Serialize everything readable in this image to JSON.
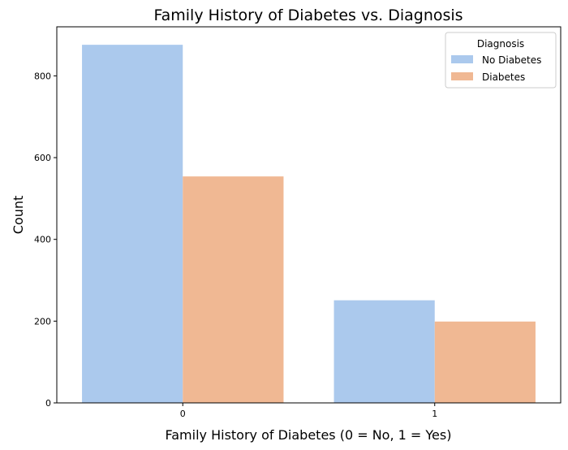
{
  "chart_data": {
    "type": "bar",
    "title": "Family History of Diabetes vs. Diagnosis",
    "xlabel": "Family History of Diabetes (0 = No, 1 = Yes)",
    "ylabel": "Count",
    "categories": [
      "0",
      "1"
    ],
    "series": [
      {
        "name": "No Diabetes",
        "values": [
          876,
          251
        ],
        "color": "#abc9ed"
      },
      {
        "name": "Diabetes",
        "values": [
          554,
          199
        ],
        "color": "#f0b893"
      }
    ],
    "ylim": [
      0,
      920
    ],
    "yticks": [
      0,
      200,
      400,
      600,
      800
    ],
    "legend": {
      "title": "Diagnosis",
      "position": "top-right"
    },
    "grid": false
  }
}
